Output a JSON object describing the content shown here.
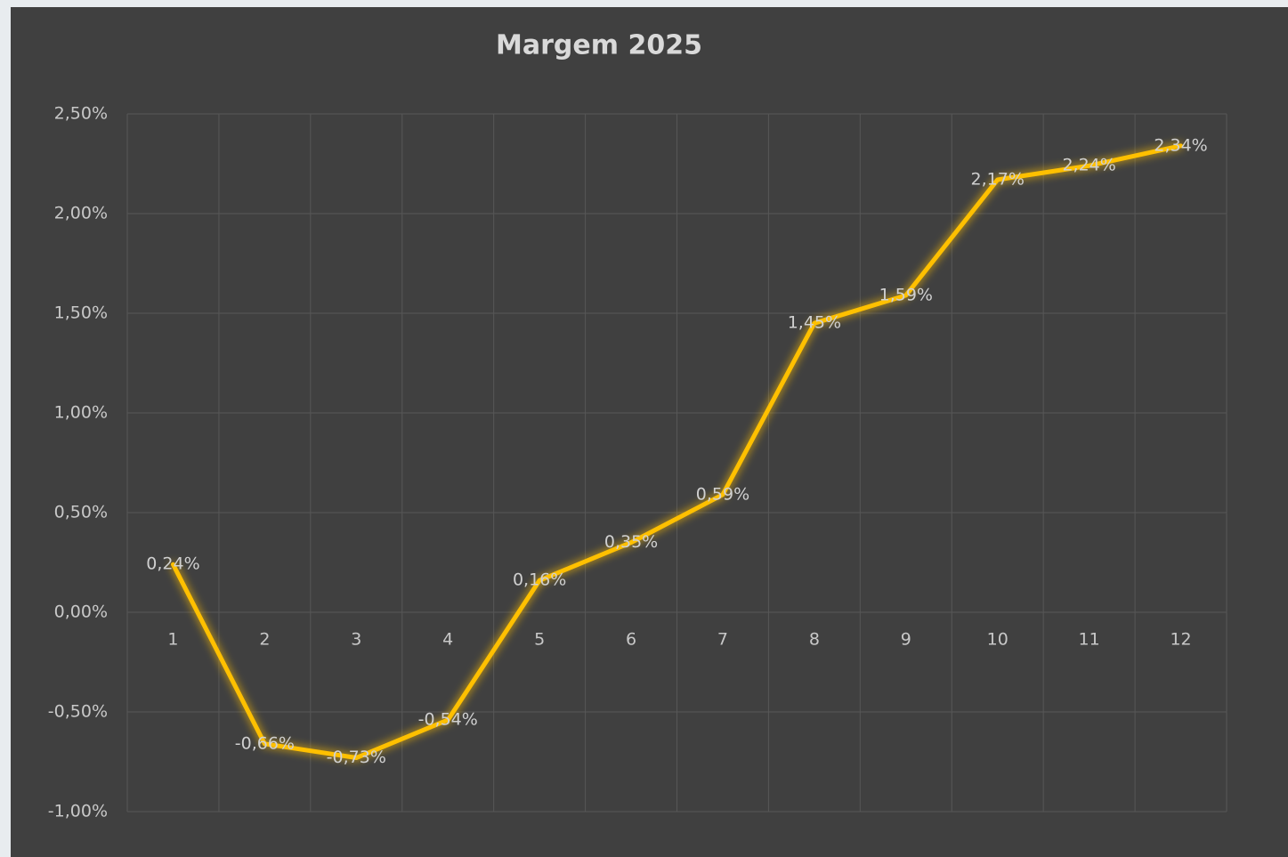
{
  "chart_data": {
    "type": "line",
    "title": "Margem 2025",
    "categories": [
      "1",
      "2",
      "3",
      "4",
      "5",
      "6",
      "7",
      "8",
      "9",
      "10",
      "11",
      "12"
    ],
    "series": [
      {
        "name": "Margem",
        "color": "#ffc000",
        "values": [
          0.24,
          -0.66,
          -0.73,
          -0.54,
          0.16,
          0.35,
          0.59,
          1.45,
          1.59,
          2.17,
          2.24,
          2.34
        ],
        "value_labels": [
          "0,24%",
          "-0,66%",
          "-0,73%",
          "-0,54%",
          "0,16%",
          "0,35%",
          "0,59%",
          "1,45%",
          "1,59%",
          "2,17%",
          "2,24%",
          "2,34%"
        ]
      }
    ],
    "ylim": [
      -1,
      2.5
    ],
    "yticks": [
      {
        "value": -1,
        "label": "-1,00%"
      },
      {
        "value": -0.5,
        "label": "-0,50%"
      },
      {
        "value": 0,
        "label": "0,00%"
      },
      {
        "value": 0.5,
        "label": "0,50%"
      },
      {
        "value": 1,
        "label": "1,00%"
      },
      {
        "value": 1.5,
        "label": "1,50%"
      },
      {
        "value": 2,
        "label": "2,00%"
      },
      {
        "value": 2.5,
        "label": "2,50%"
      }
    ],
    "grid": true
  }
}
